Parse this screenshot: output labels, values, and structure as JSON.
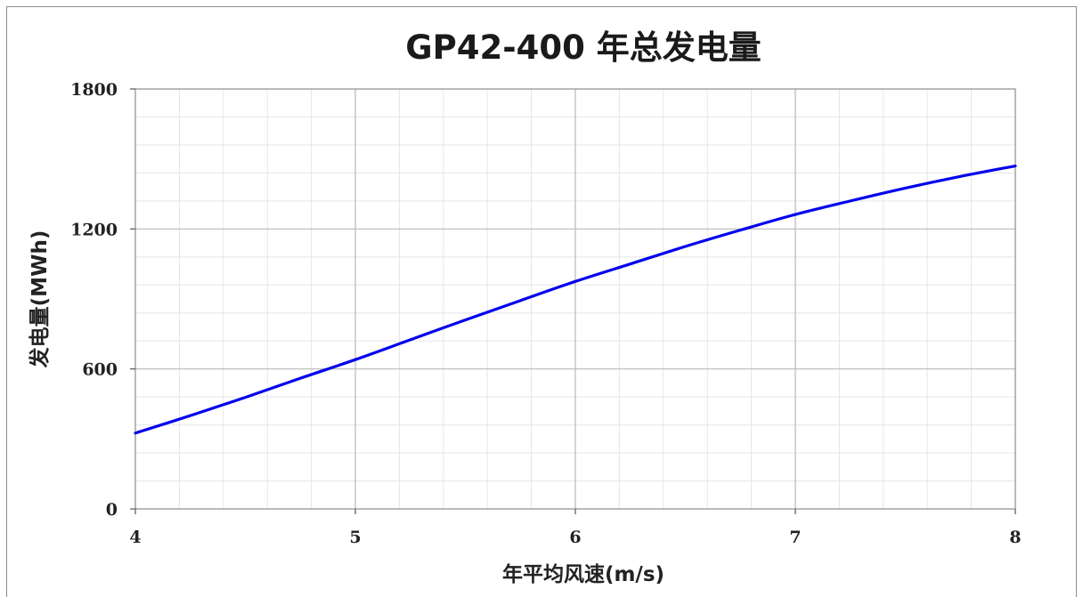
{
  "chart_data": {
    "type": "line",
    "title": "GP42-400 年总发电量",
    "xlabel": "年平均风速(m/s)",
    "ylabel": "发电量(MWh)",
    "xlim": [
      4,
      8
    ],
    "ylim": [
      0,
      1800
    ],
    "x_ticks": [
      4,
      5,
      6,
      7,
      8
    ],
    "y_ticks": [
      0,
      600,
      1200,
      1800
    ],
    "x_tick_labels": [
      "4",
      "5",
      "6",
      "7",
      "8"
    ],
    "y_tick_labels": [
      "0",
      "600",
      "1200",
      "1800"
    ],
    "grid": true,
    "minor_grid": true,
    "legend": "none",
    "series": [
      {
        "color": "#0000ee",
        "x": [
          4.0,
          4.25,
          4.5,
          4.75,
          5.0,
          5.25,
          5.5,
          5.75,
          6.0,
          6.25,
          6.5,
          6.75,
          7.0,
          7.25,
          7.5,
          7.75,
          8.0
        ],
        "y": [
          325,
          400,
          478,
          560,
          640,
          725,
          810,
          893,
          975,
          1050,
          1125,
          1195,
          1262,
          1320,
          1375,
          1425,
          1470
        ]
      }
    ]
  }
}
